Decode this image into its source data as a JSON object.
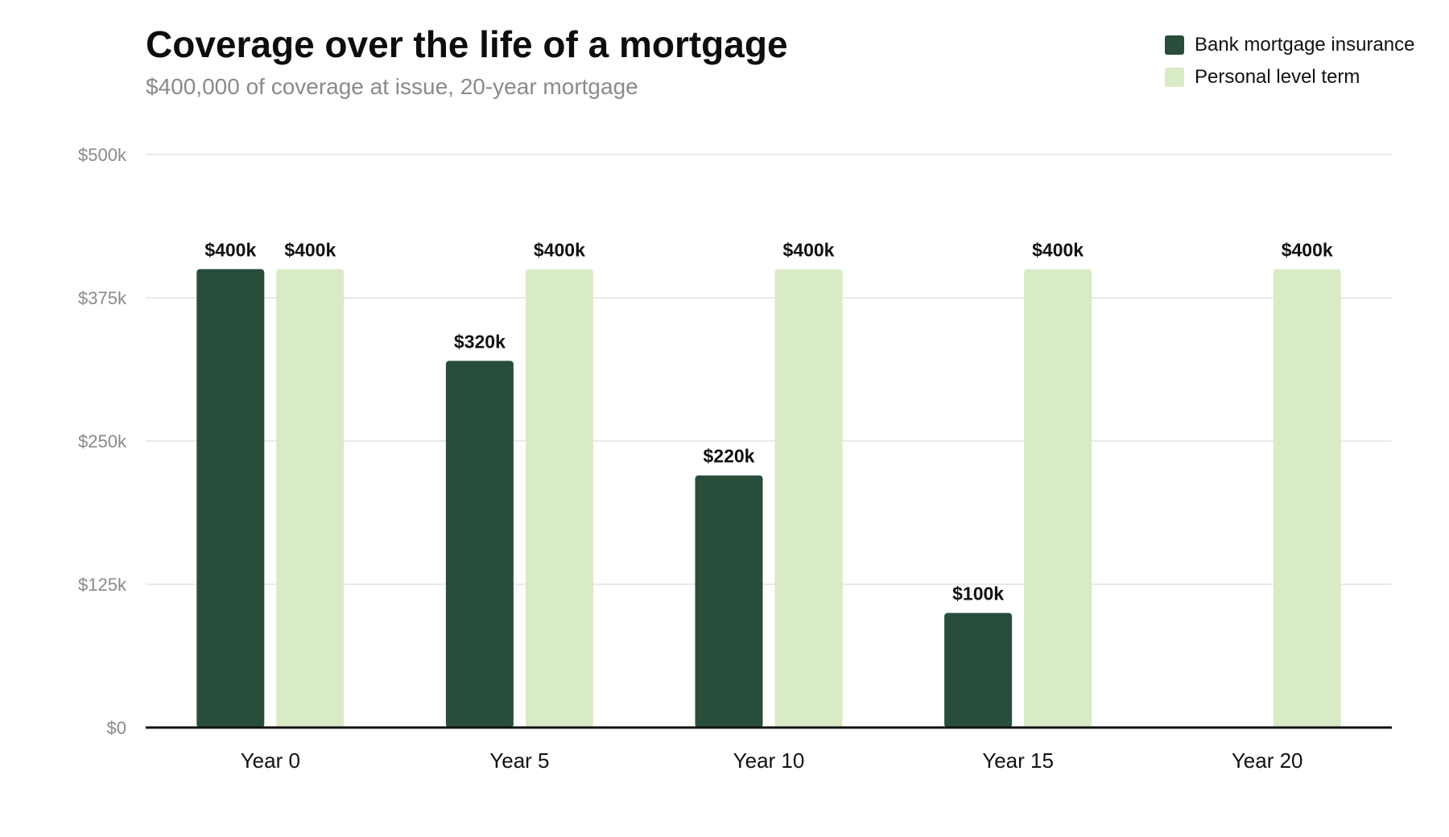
{
  "chart_data": {
    "type": "bar",
    "title": "Coverage over the life of a mortgage",
    "subtitle": "$400,000 of coverage at issue, 20-year mortgage",
    "categories": [
      "Year 0",
      "Year 5",
      "Year 10",
      "Year 15",
      "Year 20"
    ],
    "series": [
      {
        "name": "Bank mortgage insurance",
        "color": "#284e3b",
        "values": [
          400000,
          320000,
          220000,
          100000,
          0
        ],
        "labels": [
          "$400k",
          "$320k",
          "$220k",
          "$100k",
          ""
        ]
      },
      {
        "name": "Personal level term",
        "color": "#d9eac7",
        "values": [
          400000,
          400000,
          400000,
          400000,
          400000
        ],
        "labels": [
          "$400k",
          "$400k",
          "$400k",
          "$400k",
          "$400k"
        ]
      }
    ],
    "ylim": [
      0,
      500000
    ],
    "yticks": [
      0,
      125000,
      250000,
      375000,
      500000
    ],
    "ytick_labels": [
      "$0",
      "$125k",
      "$250k",
      "$375k",
      "$500k"
    ],
    "grid": true,
    "legend": "top-right",
    "gridline_color": "#e3e3e3",
    "axis_color": "#111111"
  }
}
